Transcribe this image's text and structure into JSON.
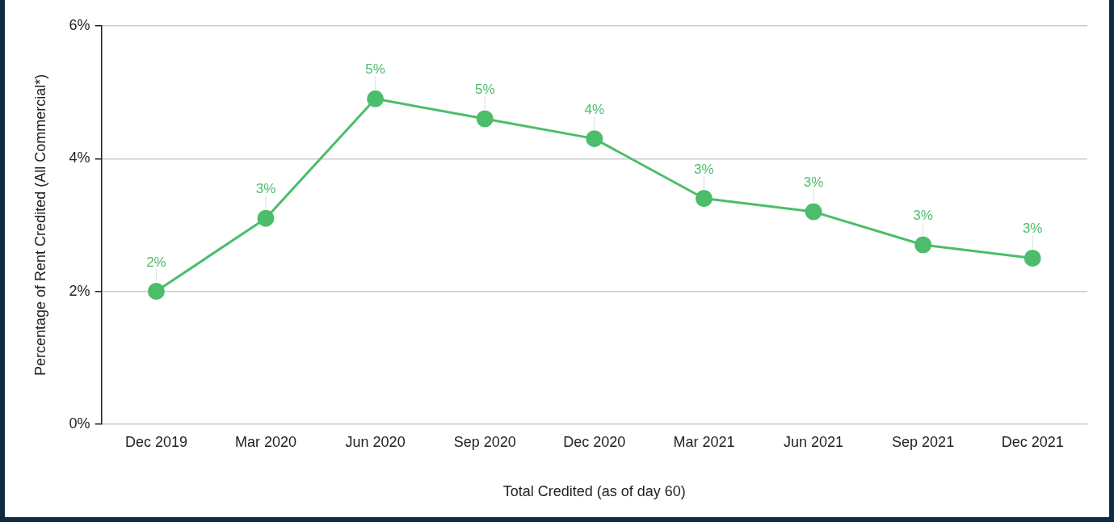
{
  "chart_data": {
    "type": "line",
    "xlabel": "Total Credited (as of day 60)",
    "ylabel": "Percentage of Rent Credited (All Commercial*)",
    "categories": [
      "Dec 2019",
      "Mar 2020",
      "Jun 2020",
      "Sep 2020",
      "Dec 2020",
      "Mar 2021",
      "Jun 2021",
      "Sep 2021",
      "Dec 2021"
    ],
    "series": [
      {
        "color": "#4cbd6a",
        "values": [
          2.0,
          3.1,
          4.9,
          4.6,
          4.3,
          3.4,
          3.2,
          2.7,
          2.5
        ],
        "value_labels": [
          "2%",
          "3%",
          "5%",
          "5%",
          "4%",
          "3%",
          "3%",
          "3%",
          "3%"
        ]
      }
    ],
    "ylim": [
      0,
      6
    ],
    "yticks": [
      {
        "value": 0,
        "label": "0%"
      },
      {
        "value": 2,
        "label": "2%"
      },
      {
        "value": 4,
        "label": "4%"
      },
      {
        "value": 6,
        "label": "6%"
      }
    ],
    "grid": "y",
    "legend": false,
    "marker": "circle",
    "line_style": "solid"
  }
}
